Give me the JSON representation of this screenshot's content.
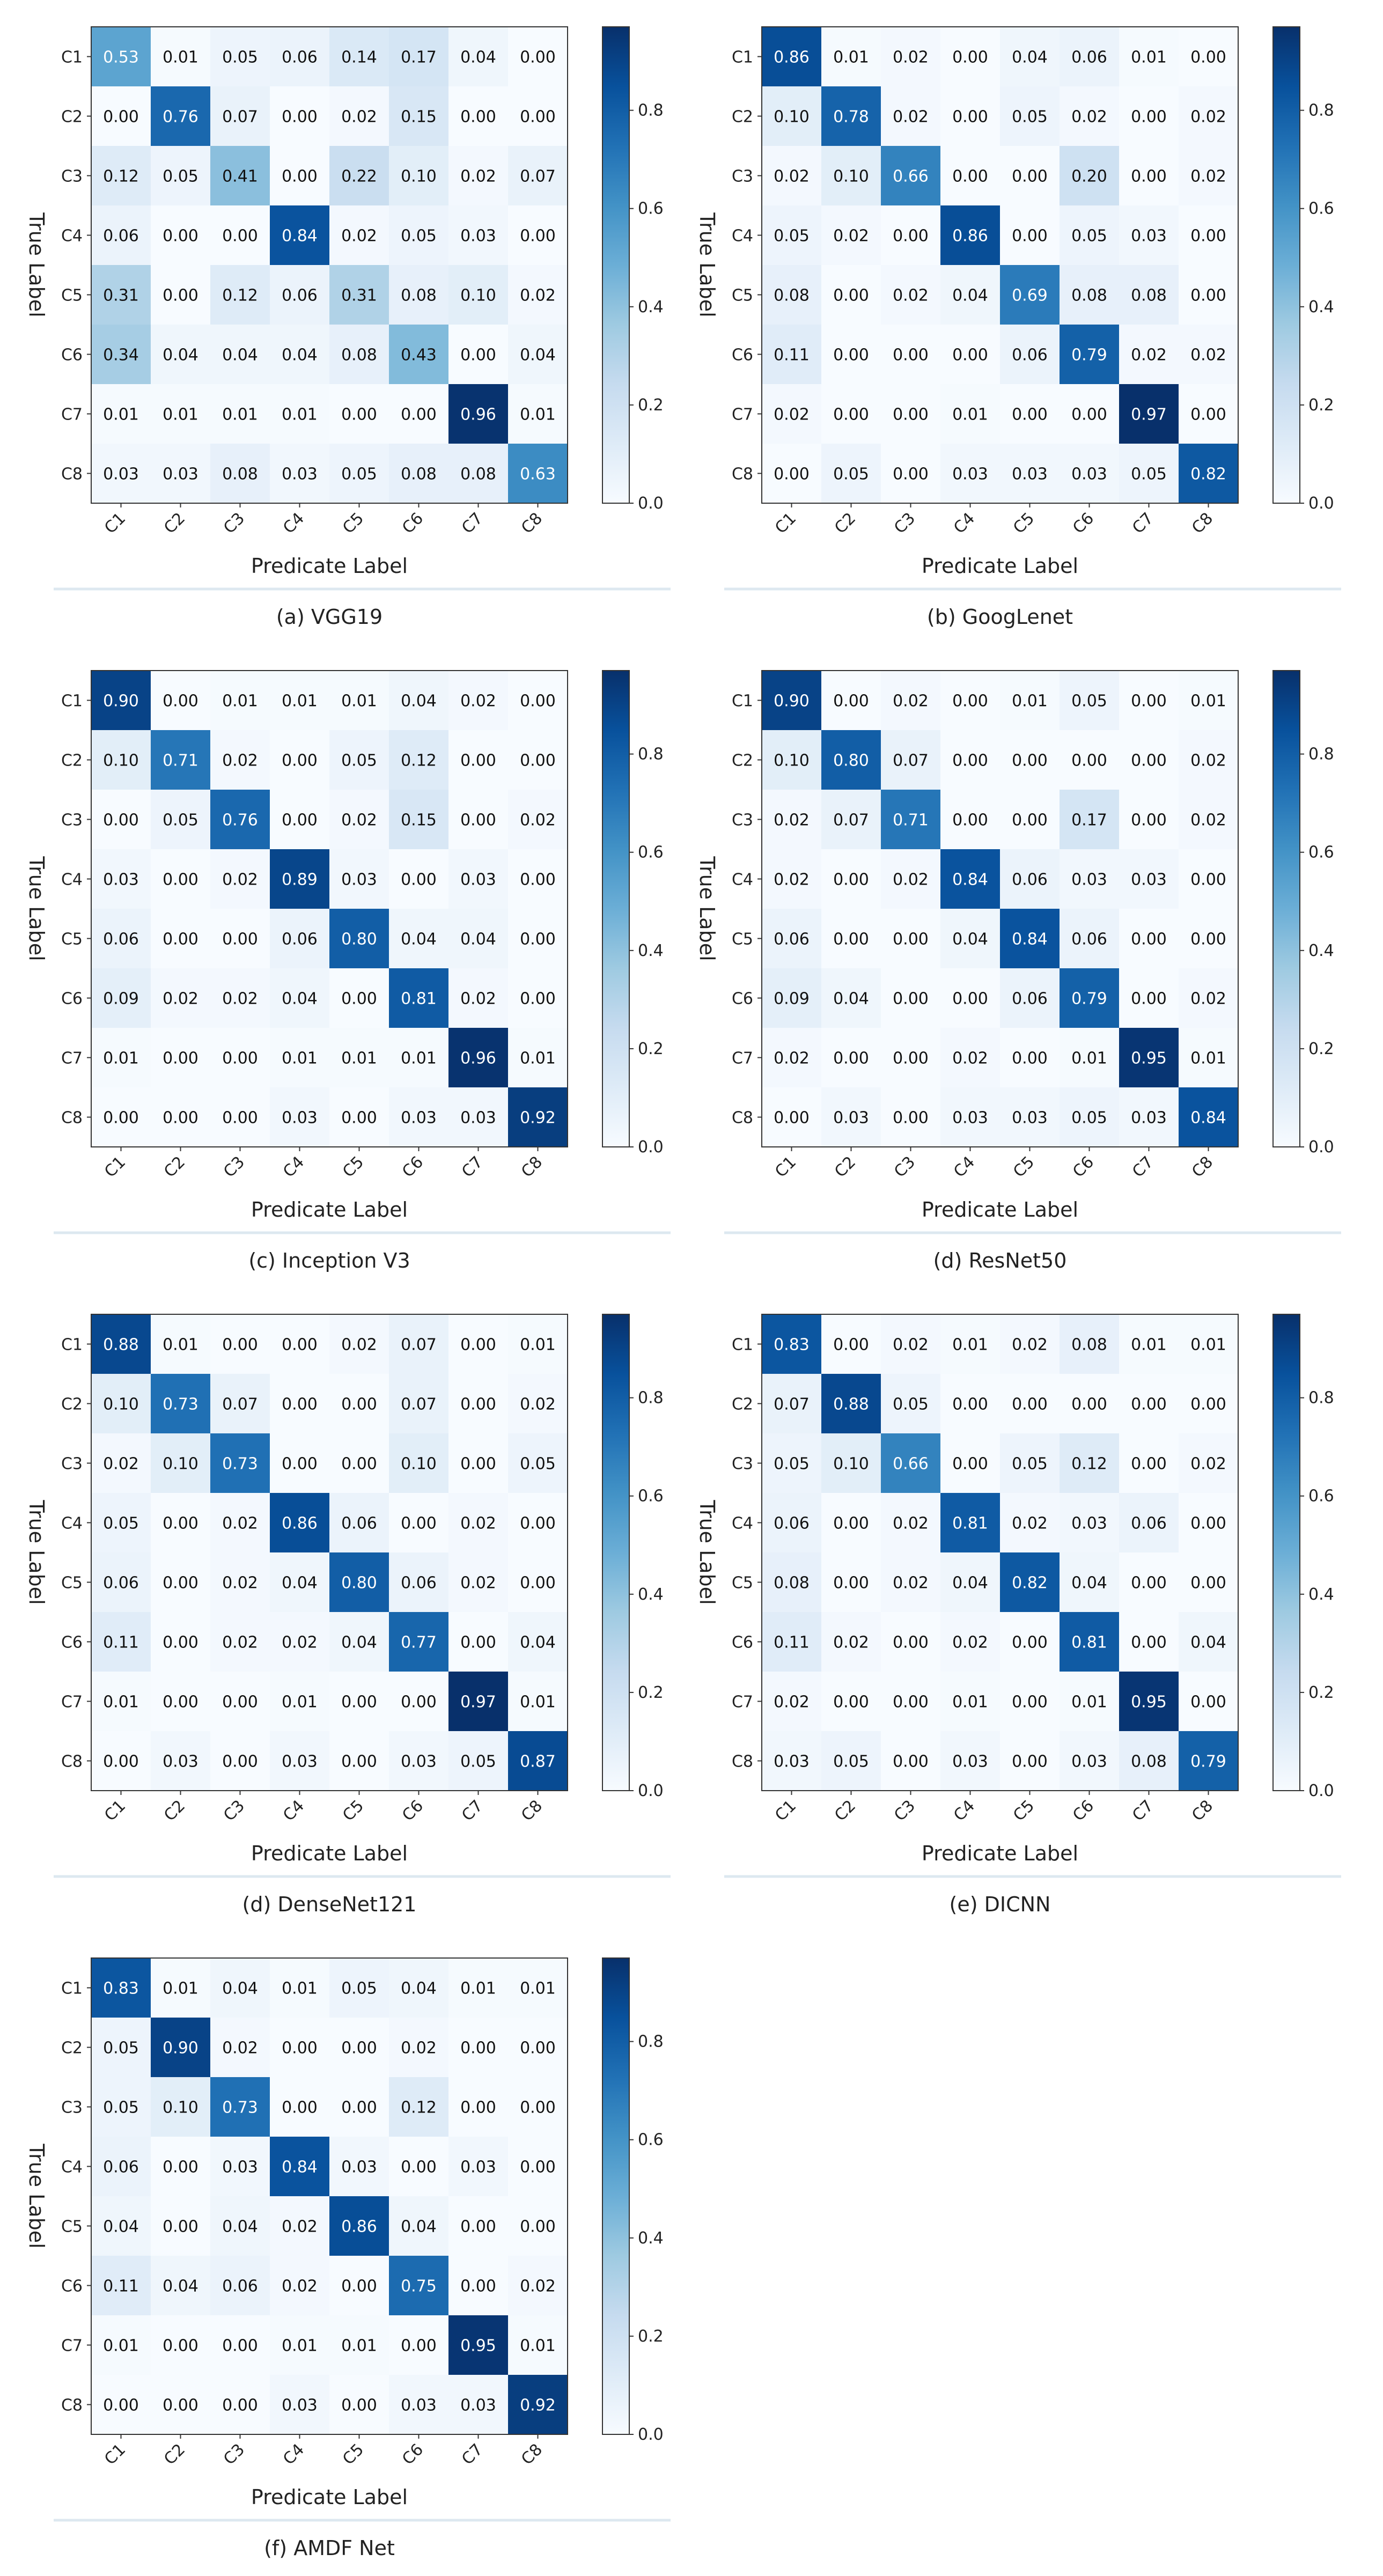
{
  "figure": {
    "ylabel": "True Label",
    "xlabel": "Predicate Label",
    "colorbar_ticks": [
      "0.0",
      "0.2",
      "0.4",
      "0.6",
      "0.8"
    ],
    "colormap": {
      "low": "#f7fbff",
      "mid": "#6baed6",
      "high": "#08306b"
    }
  },
  "chart_data": [
    {
      "type": "heatmap",
      "caption": "(a) VGG19",
      "rows": [
        "C1",
        "C2",
        "C3",
        "C4",
        "C5",
        "C6",
        "C7",
        "C8"
      ],
      "cols": [
        "C1",
        "C2",
        "C3",
        "C4",
        "C5",
        "C6",
        "C7",
        "C8"
      ],
      "values": [
        [
          "0.53",
          "0.01",
          "0.05",
          "0.06",
          "0.14",
          "0.17",
          "0.04",
          "0.00"
        ],
        [
          "0.00",
          "0.76",
          "0.07",
          "0.00",
          "0.02",
          "0.15",
          "0.00",
          "0.00"
        ],
        [
          "0.12",
          "0.05",
          "0.41",
          "0.00",
          "0.22",
          "0.10",
          "0.02",
          "0.07"
        ],
        [
          "0.06",
          "0.00",
          "0.00",
          "0.84",
          "0.02",
          "0.05",
          "0.03",
          "0.00"
        ],
        [
          "0.31",
          "0.00",
          "0.12",
          "0.06",
          "0.31",
          "0.08",
          "0.10",
          "0.02"
        ],
        [
          "0.34",
          "0.04",
          "0.04",
          "0.04",
          "0.08",
          "0.43",
          "0.00",
          "0.04"
        ],
        [
          "0.01",
          "0.01",
          "0.01",
          "0.01",
          "0.00",
          "0.00",
          "0.96",
          "0.01"
        ],
        [
          "0.03",
          "0.03",
          "0.08",
          "0.03",
          "0.05",
          "0.08",
          "0.08",
          "0.63"
        ]
      ],
      "vmin": 0,
      "vmax": 0.97
    },
    {
      "type": "heatmap",
      "caption": "(b) GoogLenet",
      "rows": [
        "C1",
        "C2",
        "C3",
        "C4",
        "C5",
        "C6",
        "C7",
        "C8"
      ],
      "cols": [
        "C1",
        "C2",
        "C3",
        "C4",
        "C5",
        "C6",
        "C7",
        "C8"
      ],
      "values": [
        [
          "0.86",
          "0.01",
          "0.02",
          "0.00",
          "0.04",
          "0.06",
          "0.01",
          "0.00"
        ],
        [
          "0.10",
          "0.78",
          "0.02",
          "0.00",
          "0.05",
          "0.02",
          "0.00",
          "0.02"
        ],
        [
          "0.02",
          "0.10",
          "0.66",
          "0.00",
          "0.00",
          "0.20",
          "0.00",
          "0.02"
        ],
        [
          "0.05",
          "0.02",
          "0.00",
          "0.86",
          "0.00",
          "0.05",
          "0.03",
          "0.00"
        ],
        [
          "0.08",
          "0.00",
          "0.02",
          "0.04",
          "0.69",
          "0.08",
          "0.08",
          "0.00"
        ],
        [
          "0.11",
          "0.00",
          "0.00",
          "0.00",
          "0.06",
          "0.79",
          "0.02",
          "0.02"
        ],
        [
          "0.02",
          "0.00",
          "0.00",
          "0.01",
          "0.00",
          "0.00",
          "0.97",
          "0.00"
        ],
        [
          "0.00",
          "0.05",
          "0.00",
          "0.03",
          "0.03",
          "0.03",
          "0.05",
          "0.82"
        ]
      ],
      "vmin": 0,
      "vmax": 0.97
    },
    {
      "type": "heatmap",
      "caption": "(c) Inception V3",
      "rows": [
        "C1",
        "C2",
        "C3",
        "C4",
        "C5",
        "C6",
        "C7",
        "C8"
      ],
      "cols": [
        "C1",
        "C2",
        "C3",
        "C4",
        "C5",
        "C6",
        "C7",
        "C8"
      ],
      "values": [
        [
          "0.90",
          "0.00",
          "0.01",
          "0.01",
          "0.01",
          "0.04",
          "0.02",
          "0.00"
        ],
        [
          "0.10",
          "0.71",
          "0.02",
          "0.00",
          "0.05",
          "0.12",
          "0.00",
          "0.00"
        ],
        [
          "0.00",
          "0.05",
          "0.76",
          "0.00",
          "0.02",
          "0.15",
          "0.00",
          "0.02"
        ],
        [
          "0.03",
          "0.00",
          "0.02",
          "0.89",
          "0.03",
          "0.00",
          "0.03",
          "0.00"
        ],
        [
          "0.06",
          "0.00",
          "0.00",
          "0.06",
          "0.80",
          "0.04",
          "0.04",
          "0.00"
        ],
        [
          "0.09",
          "0.02",
          "0.02",
          "0.04",
          "0.00",
          "0.81",
          "0.02",
          "0.00"
        ],
        [
          "0.01",
          "0.00",
          "0.00",
          "0.01",
          "0.01",
          "0.01",
          "0.96",
          "0.01"
        ],
        [
          "0.00",
          "0.00",
          "0.00",
          "0.03",
          "0.00",
          "0.03",
          "0.03",
          "0.92"
        ]
      ],
      "vmin": 0,
      "vmax": 0.97
    },
    {
      "type": "heatmap",
      "caption": "(d) ResNet50",
      "rows": [
        "C1",
        "C2",
        "C3",
        "C4",
        "C5",
        "C6",
        "C7",
        "C8"
      ],
      "cols": [
        "C1",
        "C2",
        "C3",
        "C4",
        "C5",
        "C6",
        "C7",
        "C8"
      ],
      "values": [
        [
          "0.90",
          "0.00",
          "0.02",
          "0.00",
          "0.01",
          "0.05",
          "0.00",
          "0.01"
        ],
        [
          "0.10",
          "0.80",
          "0.07",
          "0.00",
          "0.00",
          "0.00",
          "0.00",
          "0.02"
        ],
        [
          "0.02",
          "0.07",
          "0.71",
          "0.00",
          "0.00",
          "0.17",
          "0.00",
          "0.02"
        ],
        [
          "0.02",
          "0.00",
          "0.02",
          "0.84",
          "0.06",
          "0.03",
          "0.03",
          "0.00"
        ],
        [
          "0.06",
          "0.00",
          "0.00",
          "0.04",
          "0.84",
          "0.06",
          "0.00",
          "0.00"
        ],
        [
          "0.09",
          "0.04",
          "0.00",
          "0.00",
          "0.06",
          "0.79",
          "0.00",
          "0.02"
        ],
        [
          "0.02",
          "0.00",
          "0.00",
          "0.02",
          "0.00",
          "0.01",
          "0.95",
          "0.01"
        ],
        [
          "0.00",
          "0.03",
          "0.00",
          "0.03",
          "0.03",
          "0.05",
          "0.03",
          "0.84"
        ]
      ],
      "vmin": 0,
      "vmax": 0.97
    },
    {
      "type": "heatmap",
      "caption": "(d) DenseNet121",
      "rows": [
        "C1",
        "C2",
        "C3",
        "C4",
        "C5",
        "C6",
        "C7",
        "C8"
      ],
      "cols": [
        "C1",
        "C2",
        "C3",
        "C4",
        "C5",
        "C6",
        "C7",
        "C8"
      ],
      "values": [
        [
          "0.88",
          "0.01",
          "0.00",
          "0.00",
          "0.02",
          "0.07",
          "0.00",
          "0.01"
        ],
        [
          "0.10",
          "0.73",
          "0.07",
          "0.00",
          "0.00",
          "0.07",
          "0.00",
          "0.02"
        ],
        [
          "0.02",
          "0.10",
          "0.73",
          "0.00",
          "0.00",
          "0.10",
          "0.00",
          "0.05"
        ],
        [
          "0.05",
          "0.00",
          "0.02",
          "0.86",
          "0.06",
          "0.00",
          "0.02",
          "0.00"
        ],
        [
          "0.06",
          "0.00",
          "0.02",
          "0.04",
          "0.80",
          "0.06",
          "0.02",
          "0.00"
        ],
        [
          "0.11",
          "0.00",
          "0.02",
          "0.02",
          "0.04",
          "0.77",
          "0.00",
          "0.04"
        ],
        [
          "0.01",
          "0.00",
          "0.00",
          "0.01",
          "0.00",
          "0.00",
          "0.97",
          "0.01"
        ],
        [
          "0.00",
          "0.03",
          "0.00",
          "0.03",
          "0.00",
          "0.03",
          "0.05",
          "0.87"
        ]
      ],
      "vmin": 0,
      "vmax": 0.97
    },
    {
      "type": "heatmap",
      "caption": "(e) DICNN",
      "rows": [
        "C1",
        "C2",
        "C3",
        "C4",
        "C5",
        "C6",
        "C7",
        "C8"
      ],
      "cols": [
        "C1",
        "C2",
        "C3",
        "C4",
        "C5",
        "C6",
        "C7",
        "C8"
      ],
      "values": [
        [
          "0.83",
          "0.00",
          "0.02",
          "0.01",
          "0.02",
          "0.08",
          "0.01",
          "0.01"
        ],
        [
          "0.07",
          "0.88",
          "0.05",
          "0.00",
          "0.00",
          "0.00",
          "0.00",
          "0.00"
        ],
        [
          "0.05",
          "0.10",
          "0.66",
          "0.00",
          "0.05",
          "0.12",
          "0.00",
          "0.02"
        ],
        [
          "0.06",
          "0.00",
          "0.02",
          "0.81",
          "0.02",
          "0.03",
          "0.06",
          "0.00"
        ],
        [
          "0.08",
          "0.00",
          "0.02",
          "0.04",
          "0.82",
          "0.04",
          "0.00",
          "0.00"
        ],
        [
          "0.11",
          "0.02",
          "0.00",
          "0.02",
          "0.00",
          "0.81",
          "0.00",
          "0.04"
        ],
        [
          "0.02",
          "0.00",
          "0.00",
          "0.01",
          "0.00",
          "0.01",
          "0.95",
          "0.00"
        ],
        [
          "0.03",
          "0.05",
          "0.00",
          "0.03",
          "0.00",
          "0.03",
          "0.08",
          "0.79"
        ]
      ],
      "vmin": 0,
      "vmax": 0.97
    },
    {
      "type": "heatmap",
      "caption": "(f) AMDF Net",
      "rows": [
        "C1",
        "C2",
        "C3",
        "C4",
        "C5",
        "C6",
        "C7",
        "C8"
      ],
      "cols": [
        "C1",
        "C2",
        "C3",
        "C4",
        "C5",
        "C6",
        "C7",
        "C8"
      ],
      "values": [
        [
          "0.83",
          "0.01",
          "0.04",
          "0.01",
          "0.05",
          "0.04",
          "0.01",
          "0.01"
        ],
        [
          "0.05",
          "0.90",
          "0.02",
          "0.00",
          "0.00",
          "0.02",
          "0.00",
          "0.00"
        ],
        [
          "0.05",
          "0.10",
          "0.73",
          "0.00",
          "0.00",
          "0.12",
          "0.00",
          "0.00"
        ],
        [
          "0.06",
          "0.00",
          "0.03",
          "0.84",
          "0.03",
          "0.00",
          "0.03",
          "0.00"
        ],
        [
          "0.04",
          "0.00",
          "0.04",
          "0.02",
          "0.86",
          "0.04",
          "0.00",
          "0.00"
        ],
        [
          "0.11",
          "0.04",
          "0.06",
          "0.02",
          "0.00",
          "0.75",
          "0.00",
          "0.02"
        ],
        [
          "0.01",
          "0.00",
          "0.00",
          "0.01",
          "0.01",
          "0.00",
          "0.95",
          "0.01"
        ],
        [
          "0.00",
          "0.00",
          "0.00",
          "0.03",
          "0.00",
          "0.03",
          "0.03",
          "0.92"
        ]
      ],
      "vmin": 0,
      "vmax": 0.97
    }
  ]
}
